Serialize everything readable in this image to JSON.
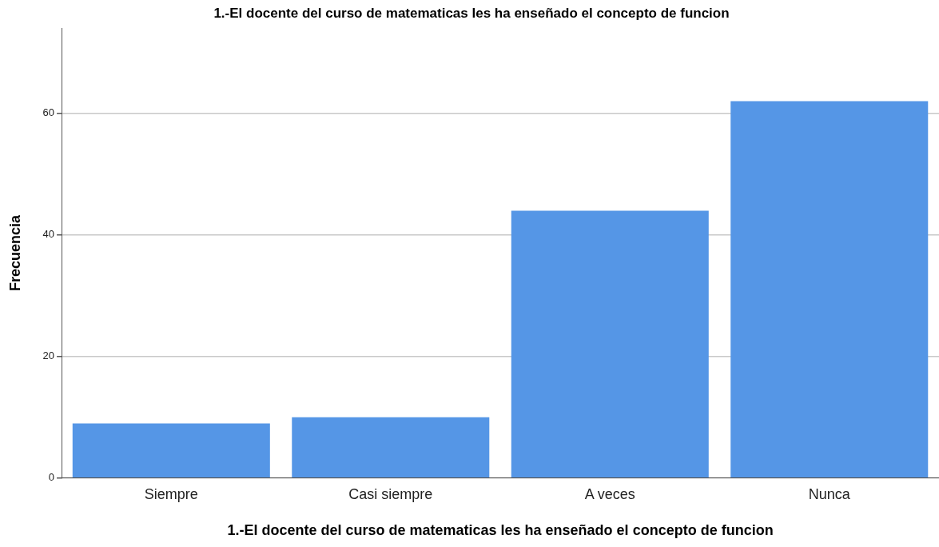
{
  "chart_data": {
    "type": "bar",
    "title": "1.-El docente del curso de matematicas les ha enseñado el concepto de funcion",
    "xlabel": "1.-El docente del curso de matematicas les ha enseñado el concepto de funcion",
    "ylabel": "Frecuencia",
    "categories": [
      "Siempre",
      "Casi siempre",
      "A veces",
      "Nunca"
    ],
    "values": [
      9,
      10,
      44,
      62
    ],
    "color": "#5596e6",
    "ylim": [
      0,
      74
    ],
    "yticks": [
      0,
      20,
      40,
      60
    ],
    "grid": "y"
  }
}
